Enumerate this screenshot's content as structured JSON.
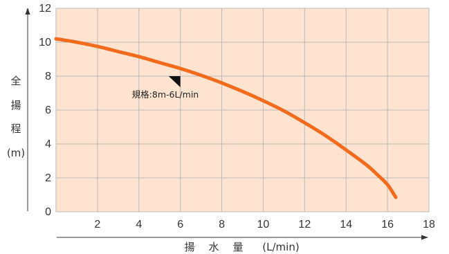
{
  "chart_data": {
    "type": "line",
    "ylabel_chars": [
      "全",
      "揚",
      "程",
      "(m)"
    ],
    "xlabel_chars": [
      "揚",
      "水",
      "量",
      "(L/min)"
    ],
    "x_ticks": [
      "2",
      "4",
      "6",
      "8",
      "10",
      "12",
      "14",
      "16",
      "18"
    ],
    "y_ticks": [
      "0",
      "2",
      "4",
      "6",
      "8",
      "10",
      "12"
    ],
    "xlim": [
      0,
      18
    ],
    "ylim": [
      0,
      12
    ],
    "grid": true,
    "series": [
      {
        "x": [
          0,
          1,
          2,
          3,
          4,
          5,
          6,
          7,
          8,
          9,
          10,
          11,
          12,
          13,
          14,
          15,
          15.5,
          16,
          16.4
        ],
        "y": [
          10.2,
          10.0,
          9.75,
          9.45,
          9.15,
          8.8,
          8.45,
          8.05,
          7.6,
          7.1,
          6.55,
          5.95,
          5.25,
          4.5,
          3.65,
          2.75,
          2.2,
          1.6,
          0.85
        ]
      }
    ],
    "annotations": [
      {
        "text": "規格:8m-6L/min",
        "x": 6,
        "y": 8
      }
    ]
  },
  "colors": {
    "plot_bg": "#fde3d0",
    "grid": "#b9b9b9",
    "line": "#f26b1d",
    "axis": "#333333"
  }
}
